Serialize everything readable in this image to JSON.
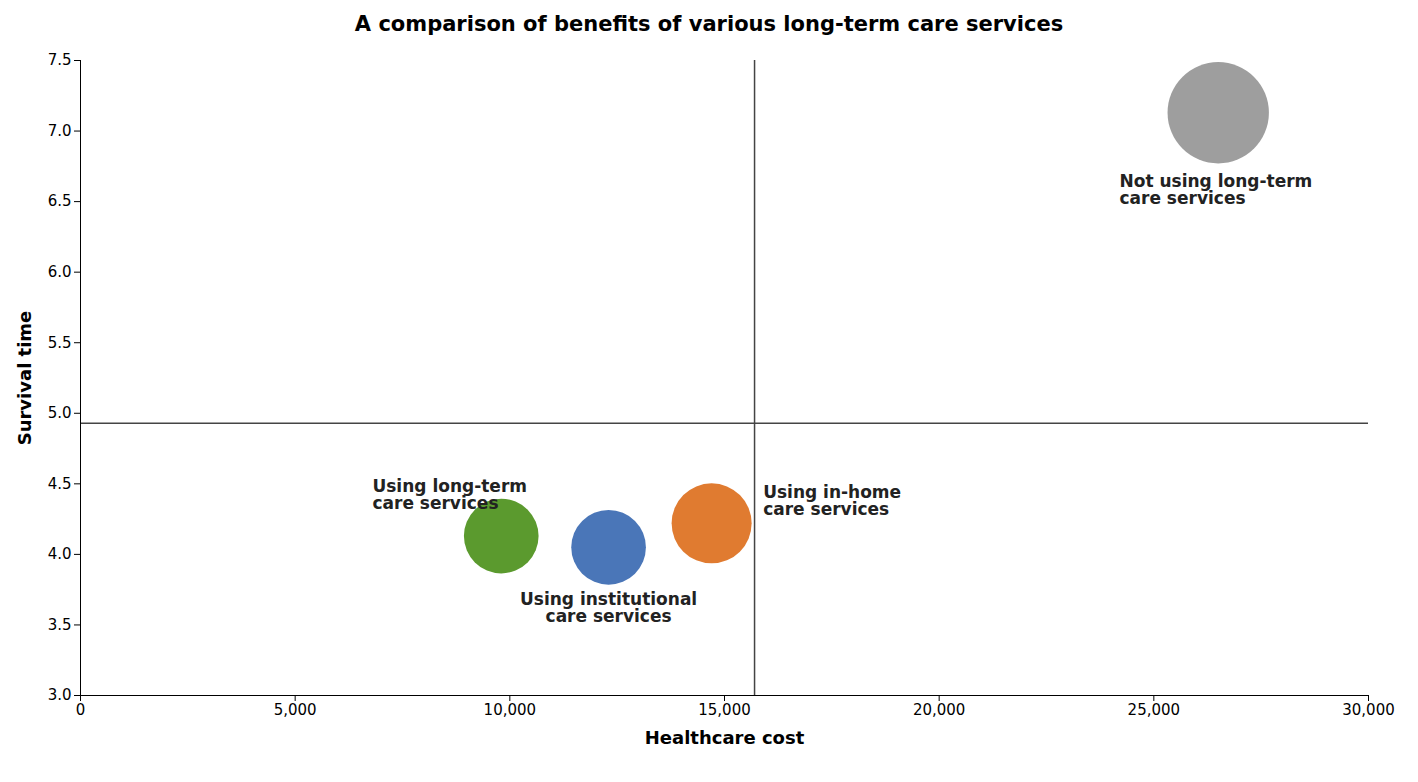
{
  "chart_data": {
    "type": "scatter",
    "title": "A comparison of benefits of various long-term care services",
    "x_label": "Healthcare cost",
    "y_label": "Survival time",
    "x": [
      9800,
      12300,
      14700,
      26500
    ],
    "y": [
      4.13,
      4.05,
      4.22,
      7.13
    ],
    "sizes": [
      28,
      28,
      30,
      38
    ],
    "colors": [
      "#5b9a2e",
      "#4a76b8",
      "#e07b30",
      "#9e9e9e"
    ],
    "xlim": [
      0,
      30000
    ],
    "ylim": [
      3.0,
      7.5
    ],
    "xticks": [
      0,
      {
        "value": 5000,
        "label": "5,000"
      },
      {
        "value": 10000,
        "label": "10,000"
      },
      {
        "value": 15000,
        "label": "15,000"
      },
      {
        "value": 20000,
        "label": "20,000"
      },
      {
        "value": 25000,
        "label": "25,000"
      },
      {
        "value": 30000,
        "label": "30,000"
      }
    ],
    "yticks": [
      {
        "value": 3,
        "label": "3.0"
      },
      3.5,
      {
        "value": 4,
        "label": "4.0"
      },
      4.5,
      {
        "value": 5,
        "label": "5.0"
      },
      5.5,
      {
        "value": 6,
        "label": "6.0"
      },
      6.5,
      {
        "value": 7,
        "label": "7.0"
      },
      7.5
    ],
    "vline": 15700,
    "hline": 4.93,
    "annotations": [
      {
        "text": "Using long-term\ncare services",
        "x": 6800,
        "y": 4.42,
        "align": "left"
      },
      {
        "text": "Using institutional\ncare services",
        "x": 12300,
        "y": 3.62,
        "align": "center"
      },
      {
        "text": "Using in-home\ncare services",
        "x": 15900,
        "y": 4.38,
        "align": "left"
      },
      {
        "text": "Not using long-term\ncare services",
        "x": 24200,
        "y": 6.58,
        "align": "left"
      }
    ],
    "grid": false
  }
}
